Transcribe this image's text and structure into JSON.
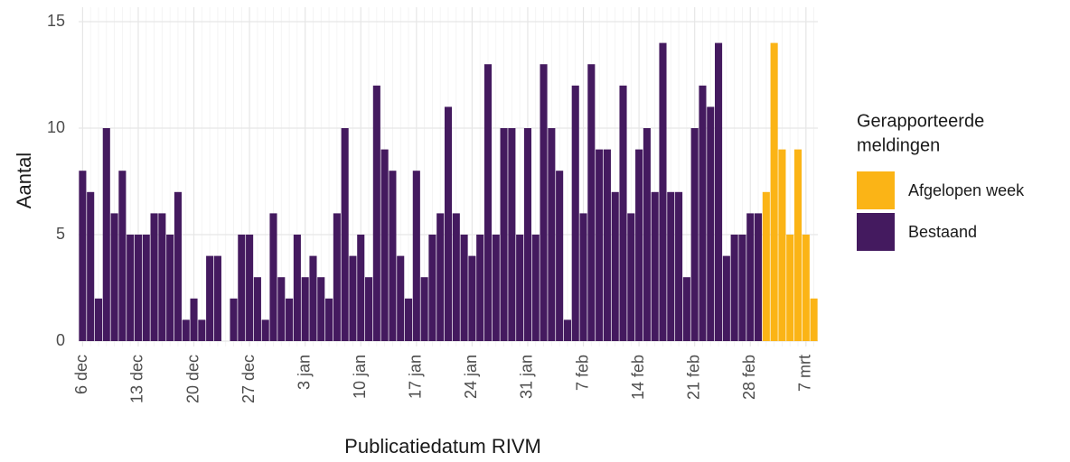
{
  "chart_data": {
    "type": "bar",
    "x_label": "Publicatiedatum RIVM",
    "y_label": "Aantal",
    "legend_title": [
      "Gerapporteerde",
      "meldingen"
    ],
    "legend_position": "right",
    "grid": true,
    "ylim": [
      0,
      15
    ],
    "yticks": [
      0,
      5,
      10,
      15
    ],
    "categories": [
      "6 dec",
      null,
      null,
      null,
      null,
      null,
      null,
      "13 dec",
      null,
      null,
      null,
      null,
      null,
      null,
      "20 dec",
      null,
      null,
      null,
      null,
      null,
      null,
      "27 dec",
      null,
      null,
      null,
      null,
      null,
      null,
      "3 jan",
      null,
      null,
      null,
      null,
      null,
      null,
      "10 jan",
      null,
      null,
      null,
      null,
      null,
      null,
      "17 jan",
      null,
      null,
      null,
      null,
      null,
      null,
      "24 jan",
      null,
      null,
      null,
      null,
      null,
      null,
      "31 jan",
      null,
      null,
      null,
      null,
      null,
      null,
      "7 feb",
      null,
      null,
      null,
      null,
      null,
      null,
      "14 feb",
      null,
      null,
      null,
      null,
      null,
      null,
      "21 feb",
      null,
      null,
      null,
      null,
      null,
      null,
      "28 feb",
      null,
      null,
      null,
      null,
      null,
      null,
      "7 mrt",
      null
    ],
    "series": [
      {
        "name": "Afgelopen week",
        "color": "#fbb416",
        "values": [
          null,
          null,
          null,
          null,
          null,
          null,
          null,
          null,
          null,
          null,
          null,
          null,
          null,
          null,
          null,
          null,
          null,
          null,
          null,
          null,
          null,
          null,
          null,
          null,
          null,
          null,
          null,
          null,
          null,
          null,
          null,
          null,
          null,
          null,
          null,
          null,
          null,
          null,
          null,
          null,
          null,
          null,
          null,
          null,
          null,
          null,
          null,
          null,
          null,
          null,
          null,
          null,
          null,
          null,
          null,
          null,
          null,
          null,
          null,
          null,
          null,
          null,
          null,
          null,
          null,
          null,
          null,
          null,
          null,
          null,
          null,
          null,
          null,
          null,
          null,
          null,
          null,
          null,
          null,
          null,
          null,
          null,
          null,
          null,
          null,
          null,
          7,
          14,
          9,
          5,
          9,
          5,
          2
        ]
      },
      {
        "name": "Bestaand",
        "color": "#441a5f",
        "values": [
          8,
          7,
          2,
          10,
          6,
          8,
          5,
          5,
          5,
          6,
          6,
          5,
          7,
          1,
          2,
          1,
          4,
          4,
          0,
          2,
          5,
          5,
          3,
          1,
          6,
          3,
          2,
          5,
          3,
          4,
          3,
          2,
          6,
          10,
          4,
          5,
          3,
          12,
          9,
          8,
          4,
          2,
          8,
          3,
          5,
          6,
          11,
          6,
          5,
          4,
          5,
          13,
          5,
          10,
          10,
          5,
          10,
          5,
          13,
          10,
          8,
          1,
          12,
          6,
          13,
          9,
          9,
          7,
          12,
          6,
          9,
          10,
          7,
          14,
          7,
          7,
          3,
          10,
          12,
          11,
          14,
          4,
          5,
          5,
          6,
          6,
          null,
          null,
          null,
          null,
          null,
          null,
          null
        ]
      }
    ]
  }
}
